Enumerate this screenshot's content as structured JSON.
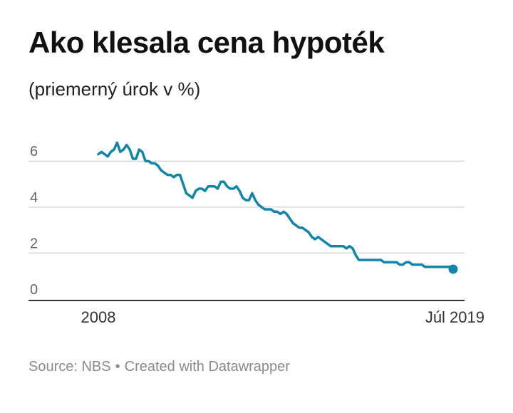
{
  "title": "Ako klesala cena hypoték",
  "subtitle": "(priemerný úrok v %)",
  "footer": {
    "source": "Source: NBS",
    "separator": "•",
    "credit": "Created with Datawrapper"
  },
  "colors": {
    "line": "#1385a8",
    "grid": "#d9d9d9",
    "axis": "#333333",
    "tick_text": "#666666",
    "label_text": "#333333"
  },
  "chart_data": {
    "type": "line",
    "title": "Ako klesala cena hypoték",
    "subtitle": "(priemerný úrok v %)",
    "xlabel": "",
    "ylabel": "",
    "x_tick_labels": [
      "2008",
      "Júl 2019"
    ],
    "y_ticks": [
      0,
      2,
      4,
      6
    ],
    "ylim": [
      0,
      6.5
    ],
    "grid": true,
    "end_marker": true,
    "series": [
      {
        "values": [
          6.3,
          6.4,
          6.3,
          6.2,
          6.4,
          6.5,
          6.8,
          6.4,
          6.5,
          6.7,
          6.5,
          6.1,
          6.1,
          6.5,
          6.4,
          6.0,
          6.0,
          5.9,
          5.9,
          5.8,
          5.6,
          5.5,
          5.4,
          5.4,
          5.3,
          5.4,
          5.4,
          5.0,
          4.6,
          4.5,
          4.4,
          4.7,
          4.8,
          4.8,
          4.7,
          4.9,
          4.9,
          4.9,
          4.8,
          5.1,
          5.1,
          4.9,
          4.8,
          4.8,
          4.9,
          4.7,
          4.4,
          4.3,
          4.3,
          4.6,
          4.3,
          4.1,
          4.0,
          3.9,
          3.9,
          3.9,
          3.8,
          3.8,
          3.7,
          3.8,
          3.7,
          3.5,
          3.3,
          3.2,
          3.1,
          3.1,
          3.0,
          2.9,
          2.7,
          2.6,
          2.7,
          2.6,
          2.5,
          2.4,
          2.3,
          2.3,
          2.3,
          2.3,
          2.3,
          2.2,
          2.3,
          2.2,
          1.9,
          1.7,
          1.7,
          1.7,
          1.7,
          1.7,
          1.7,
          1.7,
          1.7,
          1.6,
          1.6,
          1.6,
          1.6,
          1.6,
          1.5,
          1.5,
          1.6,
          1.6,
          1.5,
          1.5,
          1.5,
          1.5,
          1.4,
          1.4,
          1.4,
          1.4,
          1.4,
          1.4,
          1.4,
          1.4,
          1.4,
          1.3
        ]
      }
    ]
  }
}
